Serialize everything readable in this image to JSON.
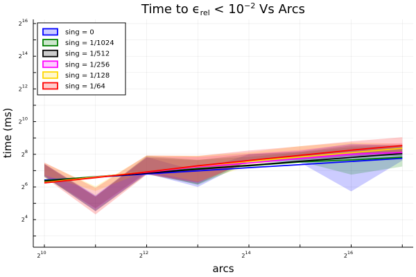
{
  "chart_data": {
    "type": "line",
    "title": "Time to ϵrel < 10^-2 Vs Arcs",
    "xlabel": "arcs",
    "ylabel": "time (ms)",
    "x_scale": "log2",
    "y_scale": "log2",
    "x_log2_ticks": [
      10,
      12,
      14,
      16
    ],
    "y_log2_ticks": [
      4,
      6,
      8,
      10,
      12,
      14,
      16
    ],
    "x": [
      1024,
      2048,
      4096,
      8192,
      16384,
      32768,
      65536,
      131072
    ],
    "legend_position": "top-left",
    "grid": true,
    "series": [
      {
        "name": "sing = 0",
        "color": "#0000ff",
        "values": [
          86,
          97,
          111,
          127,
          145,
          165,
          189,
          216
        ],
        "band_lower": [
          103,
          23,
          114,
          64,
          194,
          181,
          53,
          196
        ],
        "band_upper": [
          172,
          45,
          228,
          125,
          256,
          296,
          400,
          362
        ]
      },
      {
        "name": "sing = 1/1024",
        "color": "#008000",
        "values": [
          84,
          99,
          117,
          140,
          157,
          185,
          202,
          226
        ],
        "band_lower": [
          97,
          26,
          120,
          70,
          176,
          190,
          108,
          152
        ],
        "band_upper": [
          166,
          42,
          238,
          203,
          230,
          277,
          344,
          362
        ]
      },
      {
        "name": "sing = 1/512",
        "color": "#000000",
        "values": [
          82,
          97,
          115,
          136,
          160,
          190,
          224,
          264
        ],
        "band_lower": [
          100,
          23,
          110,
          72,
          196,
          200,
          235,
          240
        ],
        "band_upper": [
          170,
          43,
          222,
          200,
          256,
          284,
          371,
          386
        ]
      },
      {
        "name": "sing = 1/256",
        "color": "#ff00ff",
        "values": [
          76,
          98,
          119,
          150,
          177,
          214,
          257,
          276
        ],
        "band_lower": [
          104,
          25,
          115,
          75,
          198,
          205,
          230,
          256
        ],
        "band_upper": [
          170,
          43,
          230,
          228,
          264,
          308,
          389,
          410
        ]
      },
      {
        "name": "sing = 1/128",
        "color": "#ffd700",
        "values": [
          78,
          97,
          121,
          155,
          190,
          228,
          274,
          330
        ],
        "band_lower": [
          106,
          54,
          126,
          80,
          155,
          241,
          281,
          283
        ],
        "band_upper": [
          176,
          66,
          241,
          240,
          278,
          362,
          422,
          401
        ]
      },
      {
        "name": "sing = 1/64",
        "color": "#ff0000",
        "values": [
          76,
          95,
          121,
          157,
          197,
          245,
          305,
          370
        ],
        "band_lower": [
          97,
          20,
          108,
          78,
          190,
          220,
          254,
          281
        ],
        "band_upper": [
          181,
          62,
          244,
          238,
          300,
          359,
          443,
          528
        ]
      }
    ]
  }
}
